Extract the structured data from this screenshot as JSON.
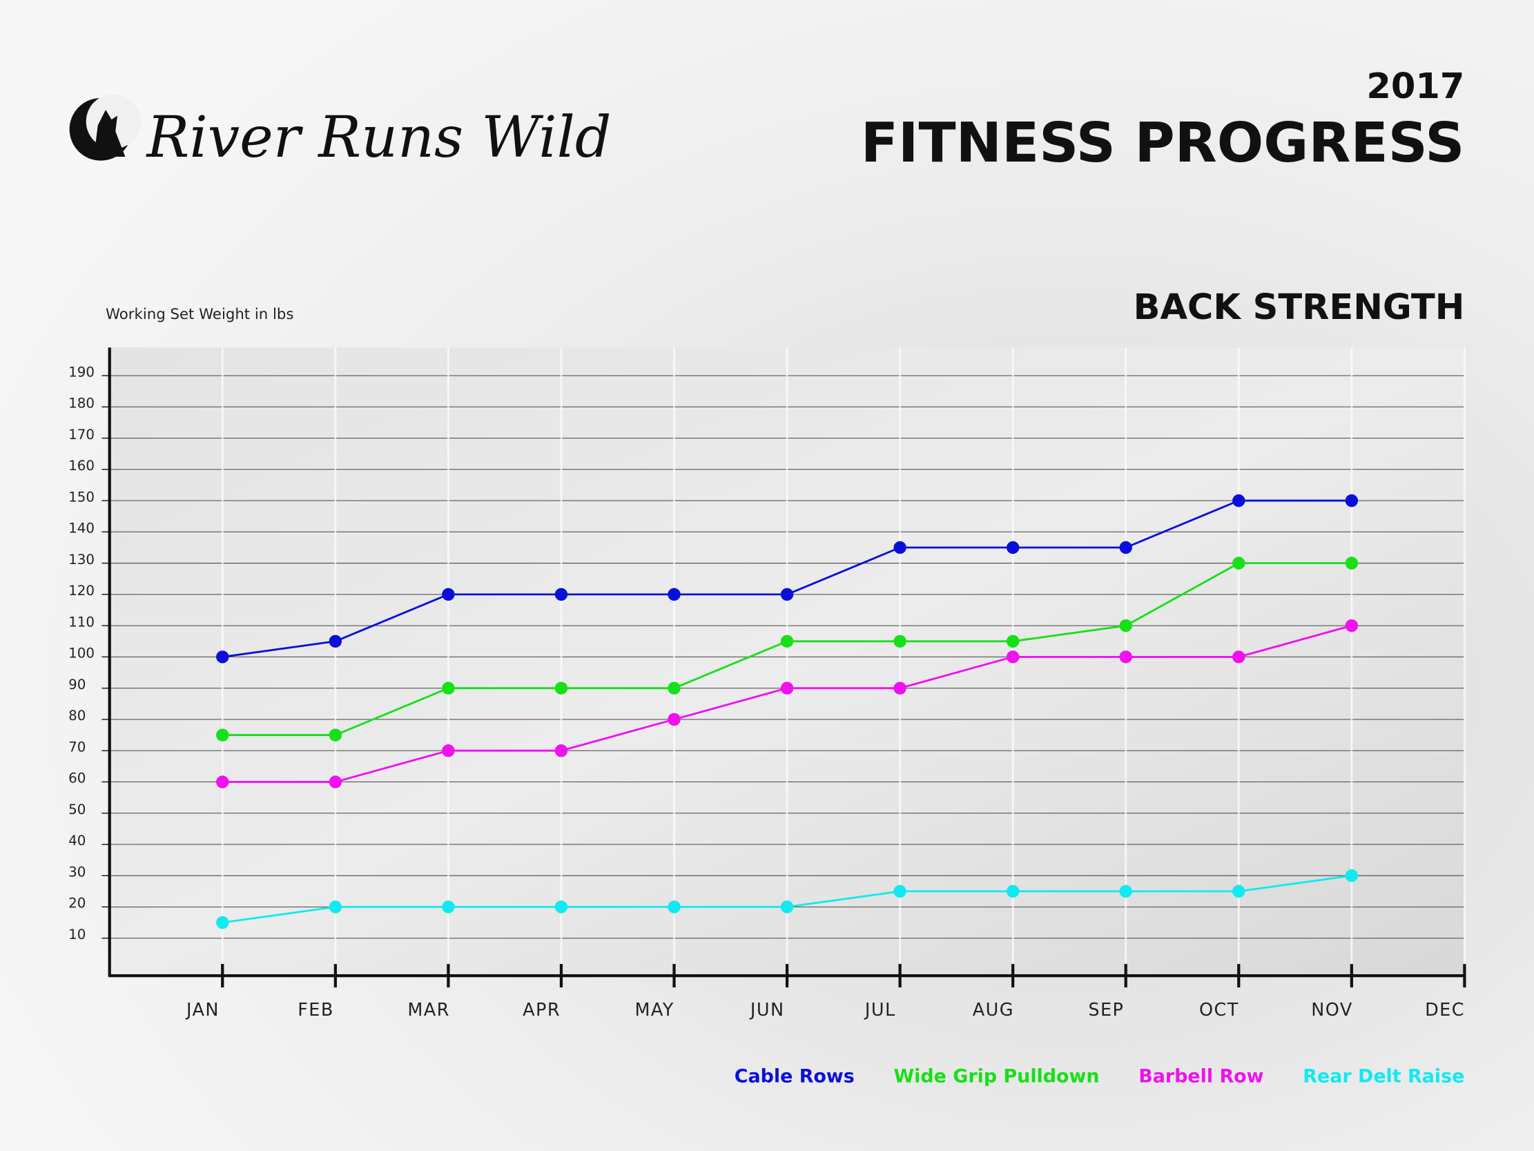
{
  "brand": "River Runs Wild",
  "chart_data": {
    "type": "line",
    "year": "2017",
    "title": "FITNESS PROGRESS",
    "subtitle": "BACK STRENGTH",
    "y_label": "Working Set Weight in lbs",
    "categories": [
      "JAN",
      "FEB",
      "MAR",
      "APR",
      "MAY",
      "JUN",
      "JUL",
      "AUG",
      "SEP",
      "OCT",
      "NOV",
      "DEC"
    ],
    "series": [
      {
        "name": "Cable Rows",
        "color": "#0a10d8",
        "values": [
          100,
          105,
          120,
          120,
          120,
          120,
          135,
          135,
          135,
          150,
          150,
          null
        ]
      },
      {
        "name": "Wide Grip Pulldown",
        "color": "#16e016",
        "values": [
          75,
          75,
          90,
          90,
          90,
          105,
          105,
          105,
          110,
          130,
          130,
          null
        ]
      },
      {
        "name": "Barbell Row",
        "color": "#f010f0",
        "values": [
          60,
          60,
          70,
          70,
          80,
          90,
          90,
          100,
          100,
          100,
          110,
          null
        ]
      },
      {
        "name": "Rear Delt Raise",
        "color": "#10eaf0",
        "values": [
          15,
          20,
          20,
          20,
          20,
          20,
          25,
          25,
          25,
          25,
          30,
          null
        ]
      }
    ],
    "ylim": [
      -2,
      199
    ],
    "yticks": [
      10,
      20,
      30,
      40,
      50,
      60,
      70,
      80,
      90,
      100,
      110,
      120,
      130,
      140,
      150,
      160,
      170,
      180,
      190
    ],
    "grid": true,
    "legend": "bottom"
  }
}
